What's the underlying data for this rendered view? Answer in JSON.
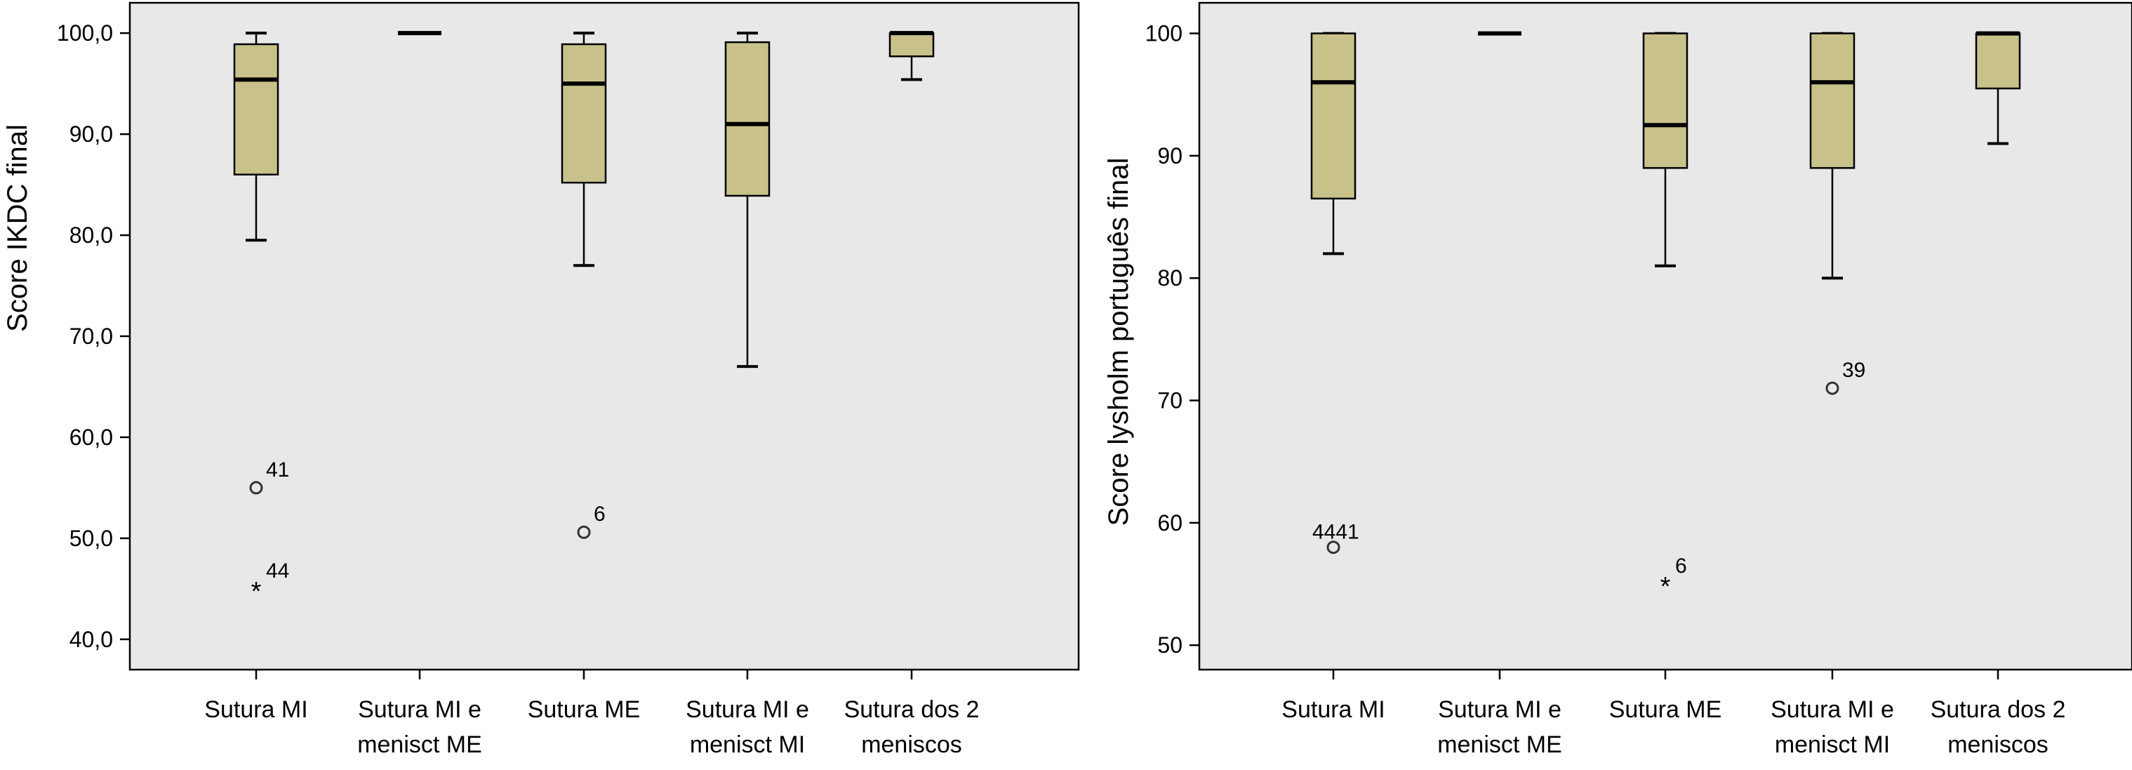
{
  "chart_data": [
    {
      "type": "boxplot",
      "title": "",
      "xlabel": "",
      "ylabel": "Score IKDC final",
      "ylim": [
        37.0,
        103.0
      ],
      "yticks": [
        "40,0",
        "50,0",
        "60,0",
        "70,0",
        "80,0",
        "90,0",
        "100,0"
      ],
      "ytick_values": [
        40,
        50,
        60,
        70,
        80,
        90,
        100
      ],
      "grid": false,
      "box_color": "#c8c28a",
      "background": "#e8e8e8",
      "categories": [
        [
          "Sutura MI"
        ],
        [
          "Sutura MI e",
          "menisct ME"
        ],
        [
          "Sutura ME"
        ],
        [
          "Sutura MI e",
          "menisct MI"
        ],
        [
          "Sutura dos 2",
          "meniscos"
        ]
      ],
      "boxes": [
        {
          "whisker_low": 79.5,
          "q1": 86.0,
          "median": 95.4,
          "q3": 98.9,
          "whisker_high": 100.0
        },
        {
          "whisker_low": 100.0,
          "q1": 100.0,
          "median": 100.0,
          "q3": 100.0,
          "whisker_high": 100.0
        },
        {
          "whisker_low": 77.0,
          "q1": 85.2,
          "median": 95.0,
          "q3": 98.9,
          "whisker_high": 100.0
        },
        {
          "whisker_low": 67.0,
          "q1": 83.9,
          "median": 91.0,
          "q3": 99.1,
          "whisker_high": 100.0
        },
        {
          "whisker_low": 95.4,
          "q1": 97.7,
          "median": 100.0,
          "q3": 100.0,
          "whisker_high": 100.0
        }
      ],
      "outliers": [
        {
          "category": 0,
          "value": 55.0,
          "label": "41",
          "marker": "circle"
        },
        {
          "category": 0,
          "value": 45.0,
          "label": "44",
          "marker": "star"
        },
        {
          "category": 2,
          "value": 50.6,
          "label": "6",
          "marker": "circle"
        }
      ]
    },
    {
      "type": "boxplot",
      "title": "",
      "xlabel": "",
      "ylabel": "Score lysholm português final",
      "ylim": [
        48.0,
        102.5
      ],
      "yticks": [
        "50",
        "60",
        "70",
        "80",
        "90",
        "100"
      ],
      "ytick_values": [
        50,
        60,
        70,
        80,
        90,
        100
      ],
      "grid": false,
      "box_color": "#c8c28a",
      "background": "#e8e8e8",
      "categories": [
        [
          "Sutura MI"
        ],
        [
          "Sutura MI e",
          "menisct ME"
        ],
        [
          "Sutura ME"
        ],
        [
          "Sutura MI e",
          "menisct MI"
        ],
        [
          "Sutura dos 2",
          "meniscos"
        ]
      ],
      "boxes": [
        {
          "whisker_low": 82.0,
          "q1": 86.5,
          "median": 96.0,
          "q3": 100.0,
          "whisker_high": 100.0
        },
        {
          "whisker_low": 100.0,
          "q1": 100.0,
          "median": 100.0,
          "q3": 100.0,
          "whisker_high": 100.0
        },
        {
          "whisker_low": 81.0,
          "q1": 89.0,
          "median": 92.5,
          "q3": 100.0,
          "whisker_high": 100.0
        },
        {
          "whisker_low": 80.0,
          "q1": 89.0,
          "median": 96.0,
          "q3": 100.0,
          "whisker_high": 100.0
        },
        {
          "whisker_low": 91.0,
          "q1": 95.5,
          "median": 100.0,
          "q3": 100.0,
          "whisker_high": 100.0
        }
      ],
      "outliers": [
        {
          "category": 0,
          "value": 58.0,
          "label": "4441",
          "marker": "circle"
        },
        {
          "category": 2,
          "value": 55.0,
          "label": "6",
          "marker": "star"
        },
        {
          "category": 3,
          "value": 71.0,
          "label": "39",
          "marker": "circle"
        }
      ]
    }
  ]
}
